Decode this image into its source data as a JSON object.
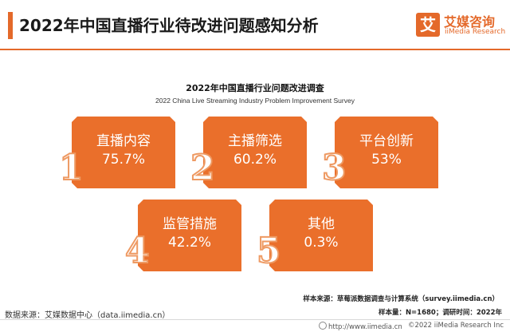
{
  "header": {
    "title": "2022年中国直播行业待改进问题感知分析",
    "logo_mark": "艾",
    "logo_cn": "艾媒咨询",
    "logo_en": "iiMedia Research"
  },
  "chart_data": {
    "type": "table",
    "title": "2022年中国直播行业问题改进调查",
    "subtitle": "2022 China Live Streaming Industry Problem Improvement Survey",
    "categories": [
      "直播内容",
      "主播筛选",
      "平台创新",
      "监管措施",
      "其他"
    ],
    "values": [
      75.7,
      60.2,
      53,
      42.2,
      0.3
    ],
    "value_labels": [
      "75.7%",
      "60.2%",
      "53%",
      "42.2%",
      "0.3%"
    ],
    "ranks": [
      "1",
      "2",
      "3",
      "4",
      "5"
    ],
    "accent_color": "#ea6f2b"
  },
  "notes": {
    "source": "样本来源：草莓派数据调查与计算系统（survey.iimedia.cn）",
    "sample": "样本量：N=1680；调研时间：2022年",
    "data_source": "数据来源：艾媒数据中心（data.iimedia.cn）"
  },
  "footer": {
    "url": "http://www.iimedia.cn",
    "copyright": "©2022  iiMedia Research  Inc"
  }
}
